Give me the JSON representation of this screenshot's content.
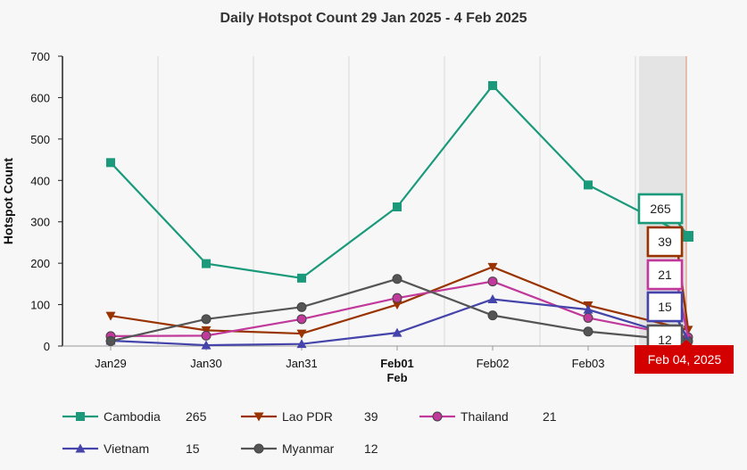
{
  "chart_data": {
    "type": "line",
    "title": "Daily Hotspot Count 29 Jan 2025 - 4 Feb 2025",
    "xlabel": "",
    "ylabel": "Hotspot Count",
    "categories": [
      "Jan29",
      "Jan30",
      "Jan31",
      "Feb01",
      "Feb02",
      "Feb03",
      "Feb 04, 2025"
    ],
    "month_label": "Feb",
    "ylim": [
      0,
      700
    ],
    "yticks": [
      0,
      100,
      200,
      300,
      400,
      500,
      600,
      700
    ],
    "grid": "vertical",
    "legend_position": "bottom",
    "hovered_category": "Feb 04, 2025",
    "series": [
      {
        "name": "Cambodia",
        "color": "#1a9a7a",
        "marker": "square",
        "values": [
          443,
          199,
          164,
          336,
          629,
          389,
          265
        ],
        "last": "265"
      },
      {
        "name": "Lao PDR",
        "color": "#993300",
        "marker": "triangle-down",
        "values": [
          73,
          38,
          30,
          100,
          191,
          98,
          39
        ],
        "last": "39"
      },
      {
        "name": "Thailand",
        "color": "#c0399b",
        "marker": "circle",
        "values": [
          24,
          25,
          65,
          116,
          156,
          68,
          21
        ],
        "last": "21"
      },
      {
        "name": "Vietnam",
        "color": "#4444aa",
        "marker": "triangle-up",
        "values": [
          13,
          2,
          5,
          32,
          113,
          88,
          15
        ],
        "last": "15"
      },
      {
        "name": "Myanmar",
        "color": "#555555",
        "marker": "circle",
        "values": [
          12,
          65,
          94,
          162,
          74,
          35,
          12
        ],
        "last": "12"
      }
    ]
  }
}
